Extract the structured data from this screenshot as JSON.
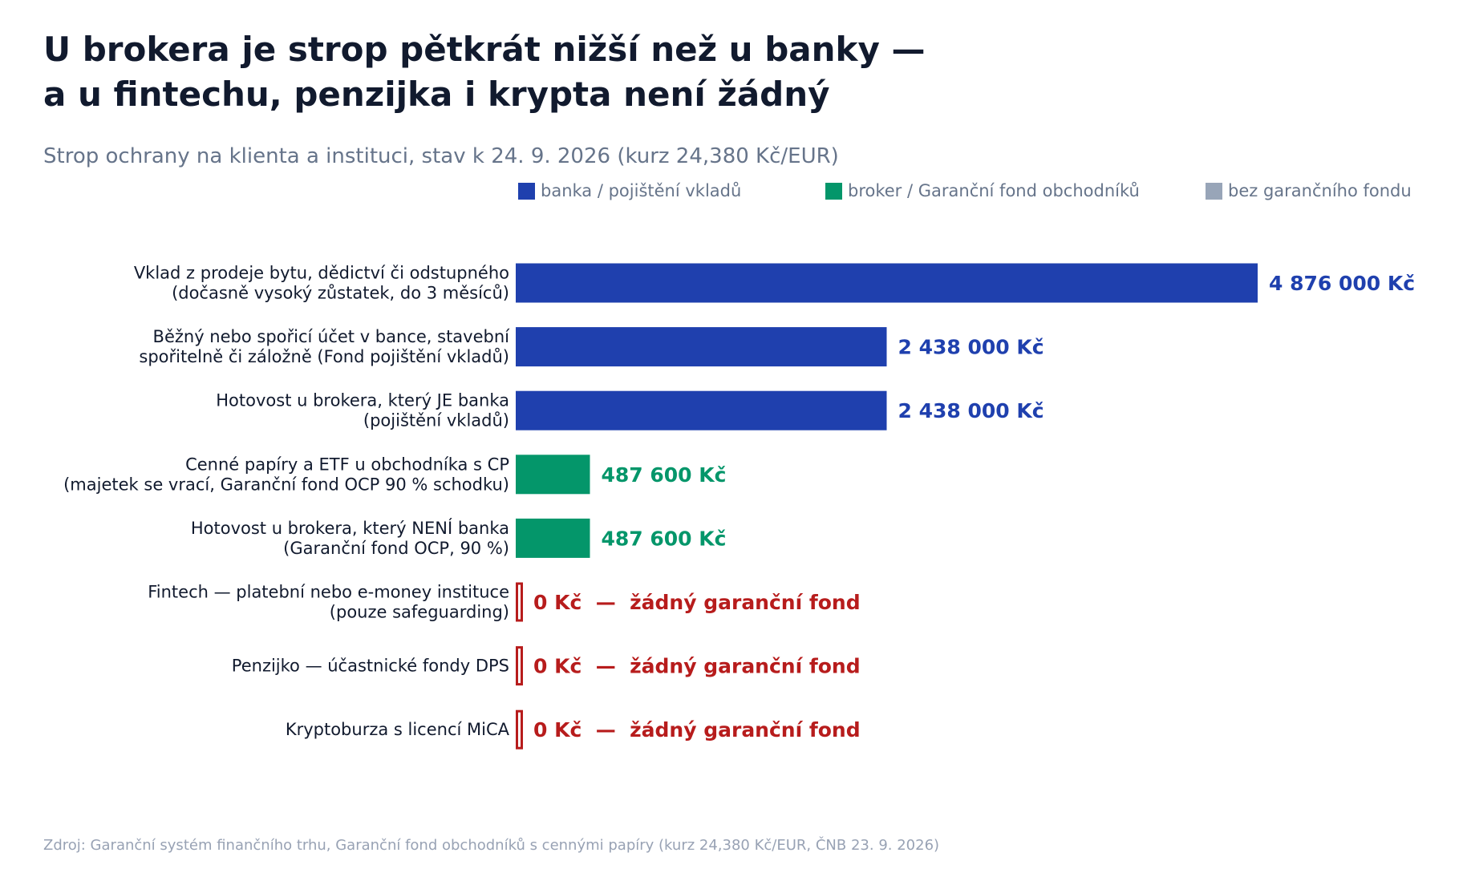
{
  "colors": {
    "bank": "#1f40ae",
    "broker": "#04966a",
    "none": "#98a5b8",
    "zero": "#b71c1c",
    "text_dark": "#111a2e",
    "text_muted": "#66748a"
  },
  "chart_data": {
    "type": "bar",
    "orientation": "horizontal",
    "title_lines": [
      "U brokera je strop pětkrát nižší než u banky —",
      "a u fintechu, penzijka i krypta není žádný"
    ],
    "subtitle": "Strop ochrany na klienta a instituci, stav k 24. 9. 2026 (kurz 24,380 Kč/EUR)",
    "legend": [
      {
        "label": "banka / pojištění vkladů",
        "color_key": "bank"
      },
      {
        "label": "broker / Garanční fond obchodníků",
        "color_key": "broker"
      },
      {
        "label": "bez garančního fondu",
        "color_key": "none"
      }
    ],
    "legend_position": "top-right",
    "xlim": [
      0,
      4876000
    ],
    "grid": false,
    "categories": [
      [
        "Vklad z prodeje bytu, dědictví či odstupného",
        "(dočasně vysoký zůstatek, do 3 měsíců)"
      ],
      [
        "Běžný nebo spořicí účet v bance, stavební",
        "spořitelně či záložně (Fond pojištění vkladů)"
      ],
      [
        "Hotovost u brokera, který JE banka",
        "(pojištění vkladů)"
      ],
      [
        "Cenné papíry a ETF u obchodníka s CP",
        "(majetek se vrací, Garanční fond OCP 90 % schodku)"
      ],
      [
        "Hotovost u brokera, který NENÍ banka",
        "(Garanční fond OCP, 90 %)"
      ],
      [
        "Fintech — platební nebo e-money instituce",
        "(pouze safeguarding)"
      ],
      [
        "Penzijko — účastnické fondy DPS"
      ],
      [
        "Kryptoburza s licencí MiCA"
      ]
    ],
    "values": [
      4876000,
      2438000,
      2438000,
      487600,
      487600,
      0,
      0,
      0
    ],
    "groups": [
      "bank",
      "bank",
      "bank",
      "broker",
      "broker",
      "none",
      "none",
      "none"
    ],
    "data_labels": [
      "4 876 000 Kč",
      "2 438 000 Kč",
      "2 438 000 Kč",
      "487 600 Kč",
      "487 600 Kč",
      "0 Kč  —  žádný garanční fond",
      "0 Kč  —  žádný garanční fond",
      "0 Kč  —  žádný garanční fond"
    ],
    "source": "Zdroj: Garanční systém finančního trhu, Garanční fond obchodníků s cennými papíry (kurz 24,380 Kč/EUR, ČNB 23. 9. 2026)"
  }
}
